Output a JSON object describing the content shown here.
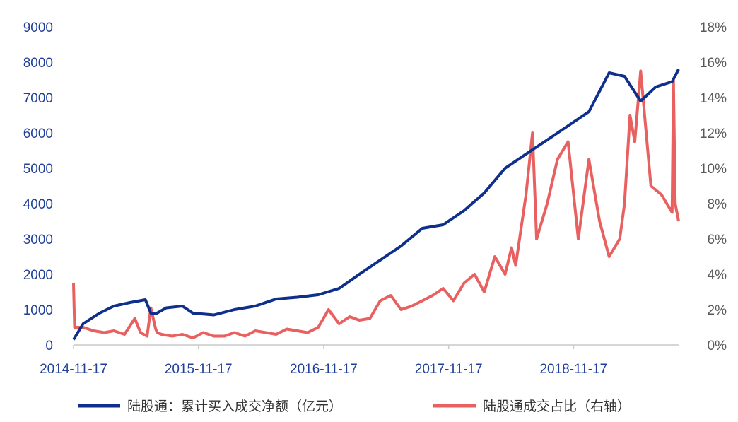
{
  "colors": {
    "blue": "#0f2f8c",
    "red": "#e8605f",
    "axis": "#c9c9c9",
    "tick_left": "#1f3f9a",
    "tick_right": "#595959"
  },
  "chart_data": {
    "type": "line",
    "title": "",
    "x_ticks": [
      "2014-11-17",
      "2015-11-17",
      "2016-11-17",
      "2017-11-17",
      "2018-11-17"
    ],
    "x_range": [
      "2014-11-17",
      "2019-09-20"
    ],
    "y_left": {
      "ticks": [
        "0",
        "1000",
        "2000",
        "3000",
        "4000",
        "5000",
        "6000",
        "7000",
        "8000",
        "9000"
      ],
      "range": [
        0,
        9000
      ]
    },
    "y_right": {
      "ticks": [
        "0%",
        "2%",
        "4%",
        "6%",
        "8%",
        "10%",
        "12%",
        "14%",
        "16%",
        "18%"
      ],
      "range": [
        0,
        18
      ]
    },
    "grid": false,
    "legend_position": "bottom",
    "series": [
      {
        "name": "陆股通：累计买入成交净额（亿元）",
        "axis": "left",
        "x": [
          "2014-11-17",
          "2014-12-15",
          "2015-02-01",
          "2015-03-15",
          "2015-05-01",
          "2015-06-15",
          "2015-07-01",
          "2015-07-15",
          "2015-08-15",
          "2015-10-01",
          "2015-11-01",
          "2016-01-01",
          "2016-03-01",
          "2016-05-01",
          "2016-07-01",
          "2016-09-01",
          "2016-11-01",
          "2017-01-01",
          "2017-03-01",
          "2017-05-01",
          "2017-07-01",
          "2017-09-01",
          "2017-11-01",
          "2018-01-01",
          "2018-03-01",
          "2018-05-01",
          "2018-07-01",
          "2018-09-01",
          "2018-11-01",
          "2019-01-01",
          "2019-03-01",
          "2019-04-15",
          "2019-06-01",
          "2019-07-15",
          "2019-09-01",
          "2019-09-20"
        ],
        "values": [
          150,
          600,
          900,
          1100,
          1200,
          1280,
          900,
          880,
          1050,
          1100,
          900,
          850,
          1000,
          1100,
          1300,
          1350,
          1420,
          1600,
          2000,
          2400,
          2800,
          3300,
          3400,
          3800,
          4300,
          5000,
          5400,
          5800,
          6200,
          6600,
          7700,
          7600,
          6900,
          7300,
          7450,
          7800
        ]
      },
      {
        "name": "陆股通成交占比（右轴）",
        "axis": "right",
        "x": [
          "2014-11-17",
          "2014-11-20",
          "2014-12-15",
          "2015-01-15",
          "2015-02-15",
          "2015-03-15",
          "2015-04-15",
          "2015-05-15",
          "2015-06-01",
          "2015-06-10",
          "2015-06-20",
          "2015-07-01",
          "2015-07-15",
          "2015-07-20",
          "2015-08-01",
          "2015-09-01",
          "2015-10-01",
          "2015-11-01",
          "2015-12-01",
          "2016-01-01",
          "2016-02-01",
          "2016-03-01",
          "2016-04-01",
          "2016-05-01",
          "2016-06-01",
          "2016-07-01",
          "2016-08-01",
          "2016-09-01",
          "2016-10-01",
          "2016-11-01",
          "2016-12-01",
          "2017-01-01",
          "2017-02-01",
          "2017-03-01",
          "2017-04-01",
          "2017-05-01",
          "2017-06-01",
          "2017-07-01",
          "2017-08-01",
          "2017-09-01",
          "2017-10-01",
          "2017-11-01",
          "2017-12-01",
          "2018-01-01",
          "2018-02-01",
          "2018-03-01",
          "2018-04-01",
          "2018-05-01",
          "2018-05-20",
          "2018-06-01",
          "2018-07-01",
          "2018-07-20",
          "2018-08-01",
          "2018-09-01",
          "2018-10-01",
          "2018-11-01",
          "2018-12-01",
          "2019-01-01",
          "2019-02-01",
          "2019-03-01",
          "2019-04-01",
          "2019-04-15",
          "2019-05-01",
          "2019-05-15",
          "2019-06-01",
          "2019-07-01",
          "2019-08-01",
          "2019-09-01",
          "2019-09-05",
          "2019-09-10",
          "2019-09-20"
        ],
        "values": [
          3.5,
          1.0,
          1.0,
          0.8,
          0.7,
          0.8,
          0.6,
          1.5,
          0.7,
          0.6,
          0.5,
          2.1,
          0.9,
          0.7,
          0.6,
          0.5,
          0.6,
          0.4,
          0.7,
          0.5,
          0.5,
          0.7,
          0.5,
          0.8,
          0.7,
          0.6,
          0.9,
          0.8,
          0.7,
          1.0,
          2.0,
          1.2,
          1.6,
          1.4,
          1.5,
          2.5,
          2.8,
          2.0,
          2.2,
          2.5,
          2.8,
          3.2,
          2.5,
          3.5,
          4.0,
          3.0,
          5.0,
          4.0,
          5.5,
          4.5,
          8.5,
          12.0,
          6.0,
          8.0,
          10.5,
          11.5,
          6.0,
          10.5,
          7.0,
          5.0,
          6.0,
          8.0,
          13.0,
          11.5,
          15.5,
          9.0,
          8.5,
          7.5,
          15.0,
          8.0,
          7.0
        ]
      }
    ]
  }
}
